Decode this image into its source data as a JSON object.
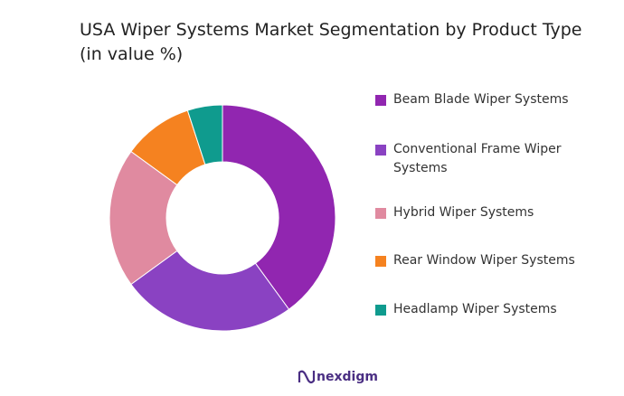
{
  "chart_data": {
    "type": "pie",
    "title": "USA Wiper Systems Market Segmentation by Product Type (in value %)",
    "categories": [
      "Beam Blade Wiper Systems",
      "Conventional Frame Wiper Systems",
      "Hybrid Wiper Systems",
      "Rear Window Wiper Systems",
      "Headlamp Wiper Systems"
    ],
    "values": [
      40,
      25,
      20,
      10,
      5
    ],
    "colors": [
      "#9126b0",
      "#8a42c2",
      "#e08aa0",
      "#f58220",
      "#0f9b8e"
    ],
    "donut": true
  },
  "brand": "nexdigm"
}
